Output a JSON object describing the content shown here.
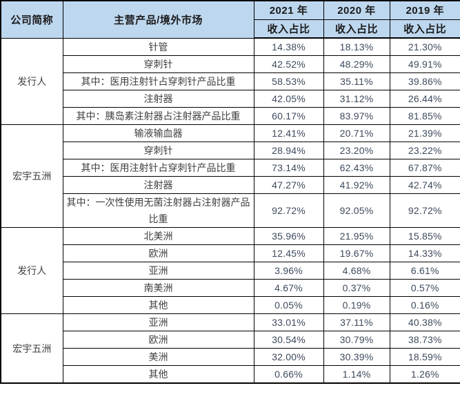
{
  "colors": {
    "header_bg": "#BDD7EE",
    "border": "#000000",
    "header_text": "#1a1a1a",
    "label_text": "#3f3f3f",
    "value_text": "#3d4a5c"
  },
  "table": {
    "header": {
      "company_col": "公司简称",
      "product_col": "主营产品/境外市场",
      "year_cols": [
        "2021 年",
        "2020 年",
        "2019 年"
      ],
      "subheader": "收入占比"
    },
    "groups": [
      {
        "company": "发行人",
        "rows": [
          {
            "label": "针管",
            "values": [
              "14.38%",
              "18.13%",
              "21.30%"
            ]
          },
          {
            "label": "穿刺针",
            "values": [
              "42.52%",
              "48.29%",
              "49.91%"
            ]
          },
          {
            "label": "其中：医用注射针占穿刺针产品比重",
            "values": [
              "58.53%",
              "35.11%",
              "39.86%"
            ]
          },
          {
            "label": "注射器",
            "values": [
              "42.05%",
              "31.12%",
              "26.44%"
            ]
          },
          {
            "label": "其中：胰岛素注射器占注射器产品比重",
            "values": [
              "60.17%",
              "83.97%",
              "81.85%"
            ]
          }
        ]
      },
      {
        "company": "宏宇五洲",
        "rows": [
          {
            "label": "输液输血器",
            "values": [
              "12.41%",
              "20.71%",
              "21.39%"
            ]
          },
          {
            "label": "穿刺针",
            "values": [
              "28.94%",
              "23.20%",
              "23.22%"
            ]
          },
          {
            "label": "其中：医用注射针占穿刺针产品比重",
            "values": [
              "73.14%",
              "62.43%",
              "67.87%"
            ]
          },
          {
            "label": "注射器",
            "values": [
              "47.27%",
              "41.92%",
              "42.74%"
            ]
          },
          {
            "label": "其中：一次性使用无菌注射器占注射器产品比重",
            "values": [
              "92.72%",
              "92.05%",
              "92.72%"
            ]
          }
        ]
      },
      {
        "company": "发行人",
        "rows": [
          {
            "label": "北美洲",
            "values": [
              "35.96%",
              "21.95%",
              "15.85%"
            ]
          },
          {
            "label": "欧洲",
            "values": [
              "12.45%",
              "19.67%",
              "14.33%"
            ]
          },
          {
            "label": "亚洲",
            "values": [
              "3.96%",
              "4.68%",
              "6.61%"
            ]
          },
          {
            "label": "南美洲",
            "values": [
              "4.67%",
              "0.37%",
              "0.57%"
            ]
          },
          {
            "label": "其他",
            "values": [
              "0.05%",
              "0.19%",
              "0.16%"
            ]
          }
        ]
      },
      {
        "company": "宏宇五洲",
        "rows": [
          {
            "label": "亚洲",
            "values": [
              "33.01%",
              "37.11%",
              "40.38%"
            ]
          },
          {
            "label": "欧洲",
            "values": [
              "30.54%",
              "30.79%",
              "38.73%"
            ]
          },
          {
            "label": "美洲",
            "values": [
              "32.00%",
              "30.39%",
              "18.59%"
            ]
          },
          {
            "label": "其他",
            "values": [
              "0.66%",
              "1.14%",
              "1.26%"
            ]
          }
        ]
      }
    ]
  }
}
